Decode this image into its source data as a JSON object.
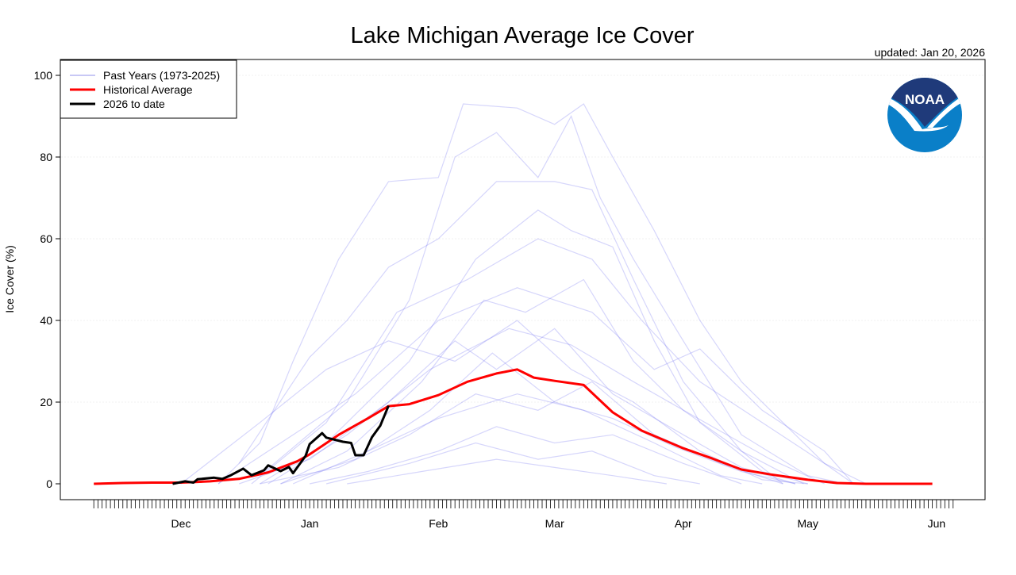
{
  "chart_data": {
    "type": "line",
    "title": "Lake Michigan Average Ice Cover",
    "subtitle": "updated: Jan 20, 2026",
    "xlabel": "",
    "ylabel": "Ice Cover (%)",
    "ylim": [
      0,
      100
    ],
    "yticks": [
      0,
      20,
      40,
      60,
      80,
      100
    ],
    "xlim": [
      "11-10",
      "06-05"
    ],
    "xticks": [
      {
        "label": "Dec",
        "date": "12-01"
      },
      {
        "label": "Jan",
        "date": "01-01"
      },
      {
        "label": "Feb",
        "date": "02-01"
      },
      {
        "label": "Mar",
        "date": "03-01"
      },
      {
        "label": "Apr",
        "date": "04-01"
      },
      {
        "label": "May",
        "date": "05-01"
      },
      {
        "label": "Jun",
        "date": "06-01"
      }
    ],
    "grid": true,
    "legend_position": "top-left",
    "legend": [
      {
        "label": "Past Years (1973-2025)",
        "color": "#c8c8f5"
      },
      {
        "label": "Historical Average",
        "color": "#ff0000"
      },
      {
        "label": "2026 to date",
        "color": "#000000"
      }
    ],
    "series": [
      {
        "name": "Historical Average",
        "color": "#ff0000",
        "points": [
          [
            "11-10",
            0
          ],
          [
            "11-17",
            0.2
          ],
          [
            "11-24",
            0.3
          ],
          [
            "12-01",
            0.3
          ],
          [
            "12-08",
            0.6
          ],
          [
            "12-15",
            1.2
          ],
          [
            "12-22",
            2.8
          ],
          [
            "12-29",
            5.5
          ],
          [
            "01-01",
            7.2
          ],
          [
            "01-08",
            12
          ],
          [
            "01-15",
            16
          ],
          [
            "01-20",
            19
          ],
          [
            "01-25",
            19.5
          ],
          [
            "02-01",
            21.7
          ],
          [
            "02-08",
            25
          ],
          [
            "02-15",
            27
          ],
          [
            "02-20",
            28
          ],
          [
            "02-24",
            26
          ],
          [
            "03-01",
            25.2
          ],
          [
            "03-08",
            24.2
          ],
          [
            "03-15",
            17.5
          ],
          [
            "03-22",
            13
          ],
          [
            "04-01",
            8.7
          ],
          [
            "04-08",
            6.2
          ],
          [
            "04-15",
            3.5
          ],
          [
            "04-22",
            2.3
          ],
          [
            "05-01",
            1
          ],
          [
            "05-08",
            0.2
          ],
          [
            "05-15",
            0
          ],
          [
            "05-31",
            0
          ]
        ]
      },
      {
        "name": "2026 to date",
        "color": "#000000",
        "points": [
          [
            "11-29",
            0
          ],
          [
            "12-02",
            0.6
          ],
          [
            "12-04",
            0.3
          ],
          [
            "12-05",
            1.1
          ],
          [
            "12-09",
            1.5
          ],
          [
            "12-11",
            1.2
          ],
          [
            "12-13",
            2.1
          ],
          [
            "12-16",
            3.7
          ],
          [
            "12-18",
            2.1
          ],
          [
            "12-21",
            3.3
          ],
          [
            "12-22",
            4.5
          ],
          [
            "12-25",
            3.1
          ],
          [
            "12-27",
            4.1
          ],
          [
            "12-28",
            2.6
          ],
          [
            "12-31",
            6.8
          ],
          [
            "01-01",
            9.7
          ],
          [
            "01-04",
            12.4
          ],
          [
            "01-05",
            11.3
          ],
          [
            "01-09",
            10.3
          ],
          [
            "01-11",
            10
          ],
          [
            "01-12",
            7
          ],
          [
            "01-14",
            7
          ],
          [
            "01-16",
            11.4
          ],
          [
            "01-18",
            14.2
          ],
          [
            "01-20",
            19.1
          ]
        ]
      }
    ],
    "past_years": {
      "label": "Past Years (1973-2025)",
      "color": "#6a6af0",
      "series": [
        [
          [
            "12-10",
            0
          ],
          [
            "12-20",
            10
          ],
          [
            "12-28",
            30
          ],
          [
            "01-08",
            55
          ],
          [
            "01-20",
            74
          ],
          [
            "02-01",
            75
          ],
          [
            "02-07",
            93
          ],
          [
            "02-20",
            92
          ],
          [
            "03-01",
            88
          ],
          [
            "03-08",
            93
          ],
          [
            "03-15",
            80
          ],
          [
            "03-25",
            62
          ],
          [
            "04-05",
            40
          ],
          [
            "04-15",
            25
          ],
          [
            "04-25",
            15
          ],
          [
            "05-05",
            5
          ],
          [
            "05-12",
            0
          ]
        ],
        [
          [
            "12-20",
            2
          ],
          [
            "01-10",
            20
          ],
          [
            "01-25",
            45
          ],
          [
            "02-05",
            80
          ],
          [
            "02-15",
            86
          ],
          [
            "02-25",
            75
          ],
          [
            "03-05",
            90
          ],
          [
            "03-12",
            70
          ],
          [
            "03-20",
            55
          ],
          [
            "04-01",
            35
          ],
          [
            "04-15",
            12
          ],
          [
            "05-01",
            2
          ],
          [
            "05-10",
            0
          ]
        ],
        [
          [
            "12-15",
            5
          ],
          [
            "01-01",
            31
          ],
          [
            "01-10",
            40
          ],
          [
            "01-20",
            53
          ],
          [
            "02-01",
            60
          ],
          [
            "02-15",
            74
          ],
          [
            "03-01",
            74
          ],
          [
            "03-10",
            72
          ],
          [
            "03-20",
            50
          ],
          [
            "04-01",
            25
          ],
          [
            "04-15",
            8
          ],
          [
            "04-25",
            0
          ]
        ],
        [
          [
            "12-20",
            0
          ],
          [
            "01-05",
            10
          ],
          [
            "01-25",
            30
          ],
          [
            "02-10",
            55
          ],
          [
            "02-25",
            67
          ],
          [
            "03-05",
            62
          ],
          [
            "03-15",
            58
          ],
          [
            "03-25",
            35
          ],
          [
            "04-05",
            15
          ],
          [
            "04-20",
            3
          ],
          [
            "05-01",
            0
          ]
        ],
        [
          [
            "12-25",
            0
          ],
          [
            "01-10",
            8
          ],
          [
            "01-28",
            25
          ],
          [
            "02-12",
            45
          ],
          [
            "02-22",
            42
          ],
          [
            "03-08",
            50
          ],
          [
            "03-20",
            30
          ],
          [
            "04-01",
            18
          ],
          [
            "04-15",
            8
          ],
          [
            "04-30",
            0
          ]
        ],
        [
          [
            "12-15",
            0
          ],
          [
            "01-01",
            6
          ],
          [
            "01-20",
            20
          ],
          [
            "02-05",
            35
          ],
          [
            "02-15",
            28
          ],
          [
            "03-01",
            38
          ],
          [
            "03-15",
            22
          ],
          [
            "04-01",
            12
          ],
          [
            "04-15",
            4
          ],
          [
            "04-28",
            0
          ]
        ],
        [
          [
            "12-20",
            0
          ],
          [
            "01-08",
            4
          ],
          [
            "01-25",
            12
          ],
          [
            "02-10",
            22
          ],
          [
            "02-25",
            18
          ],
          [
            "03-10",
            25
          ],
          [
            "03-25",
            12
          ],
          [
            "04-10",
            5
          ],
          [
            "04-25",
            0
          ]
        ],
        [
          [
            "01-01",
            0
          ],
          [
            "01-15",
            3
          ],
          [
            "02-01",
            8
          ],
          [
            "02-15",
            14
          ],
          [
            "03-01",
            10
          ],
          [
            "03-15",
            12
          ],
          [
            "04-01",
            5
          ],
          [
            "04-15",
            0
          ]
        ],
        [
          [
            "12-01",
            0
          ],
          [
            "12-20",
            15
          ],
          [
            "01-05",
            28
          ],
          [
            "01-20",
            35
          ],
          [
            "02-05",
            30
          ],
          [
            "02-20",
            40
          ],
          [
            "03-05",
            28
          ],
          [
            "03-20",
            20
          ],
          [
            "04-05",
            8
          ],
          [
            "04-20",
            1
          ],
          [
            "05-01",
            0
          ]
        ],
        [
          [
            "12-25",
            0
          ],
          [
            "01-12",
            6
          ],
          [
            "01-30",
            18
          ],
          [
            "02-14",
            32
          ],
          [
            "03-01",
            20
          ],
          [
            "03-15",
            16
          ],
          [
            "03-30",
            9
          ],
          [
            "04-15",
            3
          ],
          [
            "04-28",
            0
          ]
        ],
        [
          [
            "01-05",
            0
          ],
          [
            "01-25",
            5
          ],
          [
            "02-10",
            10
          ],
          [
            "02-25",
            6
          ],
          [
            "03-10",
            8
          ],
          [
            "03-25",
            2
          ],
          [
            "04-05",
            0
          ]
        ],
        [
          [
            "12-10",
            0
          ],
          [
            "12-28",
            12
          ],
          [
            "01-12",
            22
          ],
          [
            "02-01",
            40
          ],
          [
            "02-20",
            48
          ],
          [
            "03-10",
            42
          ],
          [
            "03-25",
            28
          ],
          [
            "04-05",
            33
          ],
          [
            "04-20",
            18
          ],
          [
            "05-05",
            8
          ],
          [
            "05-12",
            0
          ]
        ],
        [
          [
            "12-18",
            0
          ],
          [
            "01-05",
            15
          ],
          [
            "01-22",
            42
          ],
          [
            "02-08",
            50
          ],
          [
            "02-25",
            60
          ],
          [
            "03-10",
            55
          ],
          [
            "03-22",
            40
          ],
          [
            "04-05",
            25
          ],
          [
            "04-20",
            15
          ],
          [
            "05-05",
            5
          ],
          [
            "05-15",
            0
          ]
        ],
        [
          [
            "12-22",
            0
          ],
          [
            "01-10",
            12
          ],
          [
            "01-30",
            28
          ],
          [
            "02-18",
            38
          ],
          [
            "03-05",
            34
          ],
          [
            "03-20",
            25
          ],
          [
            "04-08",
            14
          ],
          [
            "04-22",
            6
          ],
          [
            "05-05",
            0
          ]
        ],
        [
          [
            "12-28",
            0
          ],
          [
            "01-15",
            8
          ],
          [
            "02-01",
            16
          ],
          [
            "02-20",
            22
          ],
          [
            "03-08",
            18
          ],
          [
            "03-25",
            10
          ],
          [
            "04-10",
            2
          ],
          [
            "04-20",
            0
          ]
        ],
        [
          [
            "01-10",
            0
          ],
          [
            "01-28",
            3
          ],
          [
            "02-15",
            6
          ],
          [
            "03-01",
            4
          ],
          [
            "03-15",
            2
          ],
          [
            "03-28",
            0
          ]
        ]
      ]
    }
  },
  "logo": {
    "text": "NOAA",
    "top_color": "#1f3a7a",
    "bottom_color": "#0a7fc8"
  }
}
